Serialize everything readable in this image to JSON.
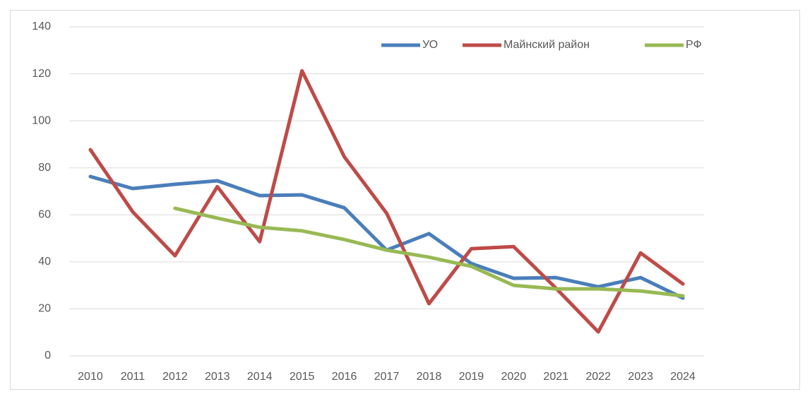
{
  "chart_data": {
    "type": "line",
    "x": [
      2010,
      2011,
      2012,
      2013,
      2014,
      2015,
      2016,
      2017,
      2018,
      2019,
      2020,
      2021,
      2022,
      2023,
      2024
    ],
    "series": [
      {
        "name": "УО",
        "color": "#4a7ebb",
        "values": [
          76.3,
          71.2,
          73,
          74.5,
          68.2,
          68.5,
          63,
          45,
          52,
          39.3,
          33,
          33.3,
          29.4,
          33.3,
          24.6
        ]
      },
      {
        "name": "Майнский район",
        "color": "#be4b48",
        "values": [
          87.7,
          61.3,
          42.6,
          72,
          48.6,
          121.3,
          84.7,
          60.7,
          22.2,
          45.6,
          46.5,
          28.8,
          10.2,
          43.8,
          30.6
        ]
      },
      {
        "name": "РФ",
        "color": "#98b954",
        "values": [
          null,
          null,
          62.8,
          58.6,
          54.7,
          53.2,
          49.5,
          45,
          42,
          38.1,
          30,
          28.5,
          28.5,
          27.6,
          25.5
        ]
      }
    ],
    "ylim": [
      0,
      140
    ],
    "yticks": [
      0,
      20,
      40,
      60,
      80,
      100,
      120,
      140
    ],
    "grid": true,
    "legend": "top-right"
  }
}
